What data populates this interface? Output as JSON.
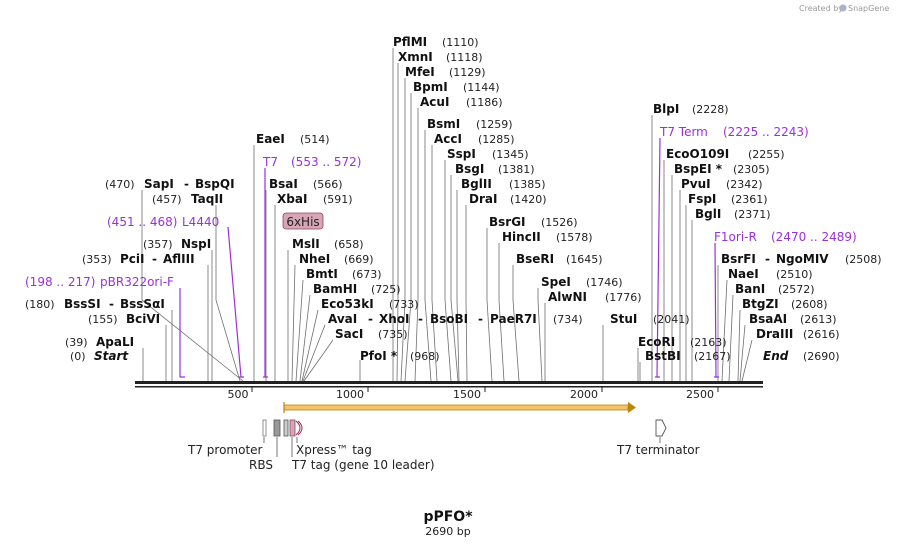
{
  "app": {
    "brand_prefix": "Created by",
    "brand_name": "SnapGene"
  },
  "map": {
    "plasmid_name": "pPFO*",
    "length_label": "2690 bp",
    "tick_labels": [
      "500",
      "1000",
      "1500",
      "2000",
      "2500"
    ],
    "start_label": "Start",
    "start_position": "(0)",
    "end_label": "End",
    "end_position": "(2690)"
  },
  "sites": [
    {
      "name": "PflMI",
      "pos": "(1110)"
    },
    {
      "name": "XmnI",
      "pos": "(1118)"
    },
    {
      "name": "MfeI",
      "pos": "(1129)"
    },
    {
      "name": "BpmI",
      "pos": "(1144)"
    },
    {
      "name": "AcuI",
      "pos": "(1186)"
    },
    {
      "name": "BsmI",
      "pos": "(1259)"
    },
    {
      "name": "AccI",
      "pos": "(1285)"
    },
    {
      "name": "SspI",
      "pos": "(1345)"
    },
    {
      "name": "BsgI",
      "pos": "(1381)"
    },
    {
      "name": "BglII",
      "pos": "(1385)"
    },
    {
      "name": "DraI",
      "pos": "(1420)"
    },
    {
      "name": "BsrGI",
      "pos": "(1526)"
    },
    {
      "name": "HincII",
      "pos": "(1578)"
    },
    {
      "name": "BseRI",
      "pos": "(1645)"
    },
    {
      "name": "SpeI",
      "pos": "(1746)"
    },
    {
      "name": "AlwNI",
      "pos": "(1776)"
    },
    {
      "name": "EaeI",
      "pos": "(514)"
    },
    {
      "name": "BsaI",
      "pos": "(566)"
    },
    {
      "name": "XbaI",
      "pos": "(591)"
    },
    {
      "name": "MslI",
      "pos": "(658)"
    },
    {
      "name": "NheI",
      "pos": "(669)"
    },
    {
      "name": "BmtI",
      "pos": "(673)"
    },
    {
      "name": "BamHI",
      "pos": "(725)"
    },
    {
      "name": "Eco53kI",
      "pos": "(733)"
    },
    {
      "name": "AvaI",
      "sep": "-",
      "name2": "XhoI",
      "sep2": "-",
      "name3": "BsoBI",
      "sep3": "-",
      "name4": "PaeR7I",
      "pos": "(734)"
    },
    {
      "name": "SacI",
      "pos": "(735)"
    },
    {
      "name": "PfoI *",
      "pos": "(968)"
    },
    {
      "name": "SapI",
      "sep": "-",
      "name2": "BspQI",
      "pos": "(470)"
    },
    {
      "name": "TaqII",
      "pos": "(457)"
    },
    {
      "name": "NspI",
      "pos": "(357)"
    },
    {
      "name": "PciI",
      "sep": "-",
      "name2": "AflIII",
      "pos": "(353)"
    },
    {
      "name": "BssSI",
      "sep": "-",
      "name2": "BssSαI",
      "pos": "(180)"
    },
    {
      "name": "BciVI",
      "pos": "(155)"
    },
    {
      "name": "ApaLI",
      "pos": "(39)"
    },
    {
      "name": "StuI",
      "pos": "(2041)"
    },
    {
      "name": "EcoRI",
      "pos": "(2163)"
    },
    {
      "name": "BstBI",
      "pos": "(2167)"
    },
    {
      "name": "BlpI",
      "pos": "(2228)"
    },
    {
      "name": "EcoO109I",
      "pos": "(2255)"
    },
    {
      "name": "BspEI *",
      "pos": "(2305)"
    },
    {
      "name": "PvuI",
      "pos": "(2342)"
    },
    {
      "name": "FspI",
      "pos": "(2361)"
    },
    {
      "name": "BglI",
      "pos": "(2371)"
    },
    {
      "name": "BsrFI",
      "sep": "-",
      "name2": "NgoMIV",
      "pos": "(2508)"
    },
    {
      "name": "NaeI",
      "pos": "(2510)"
    },
    {
      "name": "BanI",
      "pos": "(2572)"
    },
    {
      "name": "BtgZI",
      "pos": "(2608)"
    },
    {
      "name": "BsaAI",
      "pos": "(2613)"
    },
    {
      "name": "DraIII",
      "pos": "(2616)"
    }
  ],
  "primers": [
    {
      "name": "T7",
      "range": "(553 .. 572)"
    },
    {
      "name": "L4440",
      "range": "(451 .. 468)"
    },
    {
      "name": "pBR322ori-F",
      "range": "(198 .. 217)"
    },
    {
      "name": "T7 Term",
      "range": "(2225 .. 2243)"
    },
    {
      "name": "F1ori-R",
      "range": "(2470 .. 2489)"
    }
  ],
  "features": {
    "his_tag": "6xHis",
    "t7_promoter": "T7 promoter",
    "rbs": "RBS",
    "xpress_tag": "Xpress™ tag",
    "t7_tag": "T7 tag (gene 10 leader)",
    "t7_terminator": "T7 terminator"
  },
  "colors": {
    "primer": "#9b30d9",
    "orf_fill": "#f5c16a",
    "orf_stroke": "#b8860b",
    "his_fill": "#d7a5b6",
    "his_stroke": "#8a4a5e",
    "backbone": "#222222"
  }
}
